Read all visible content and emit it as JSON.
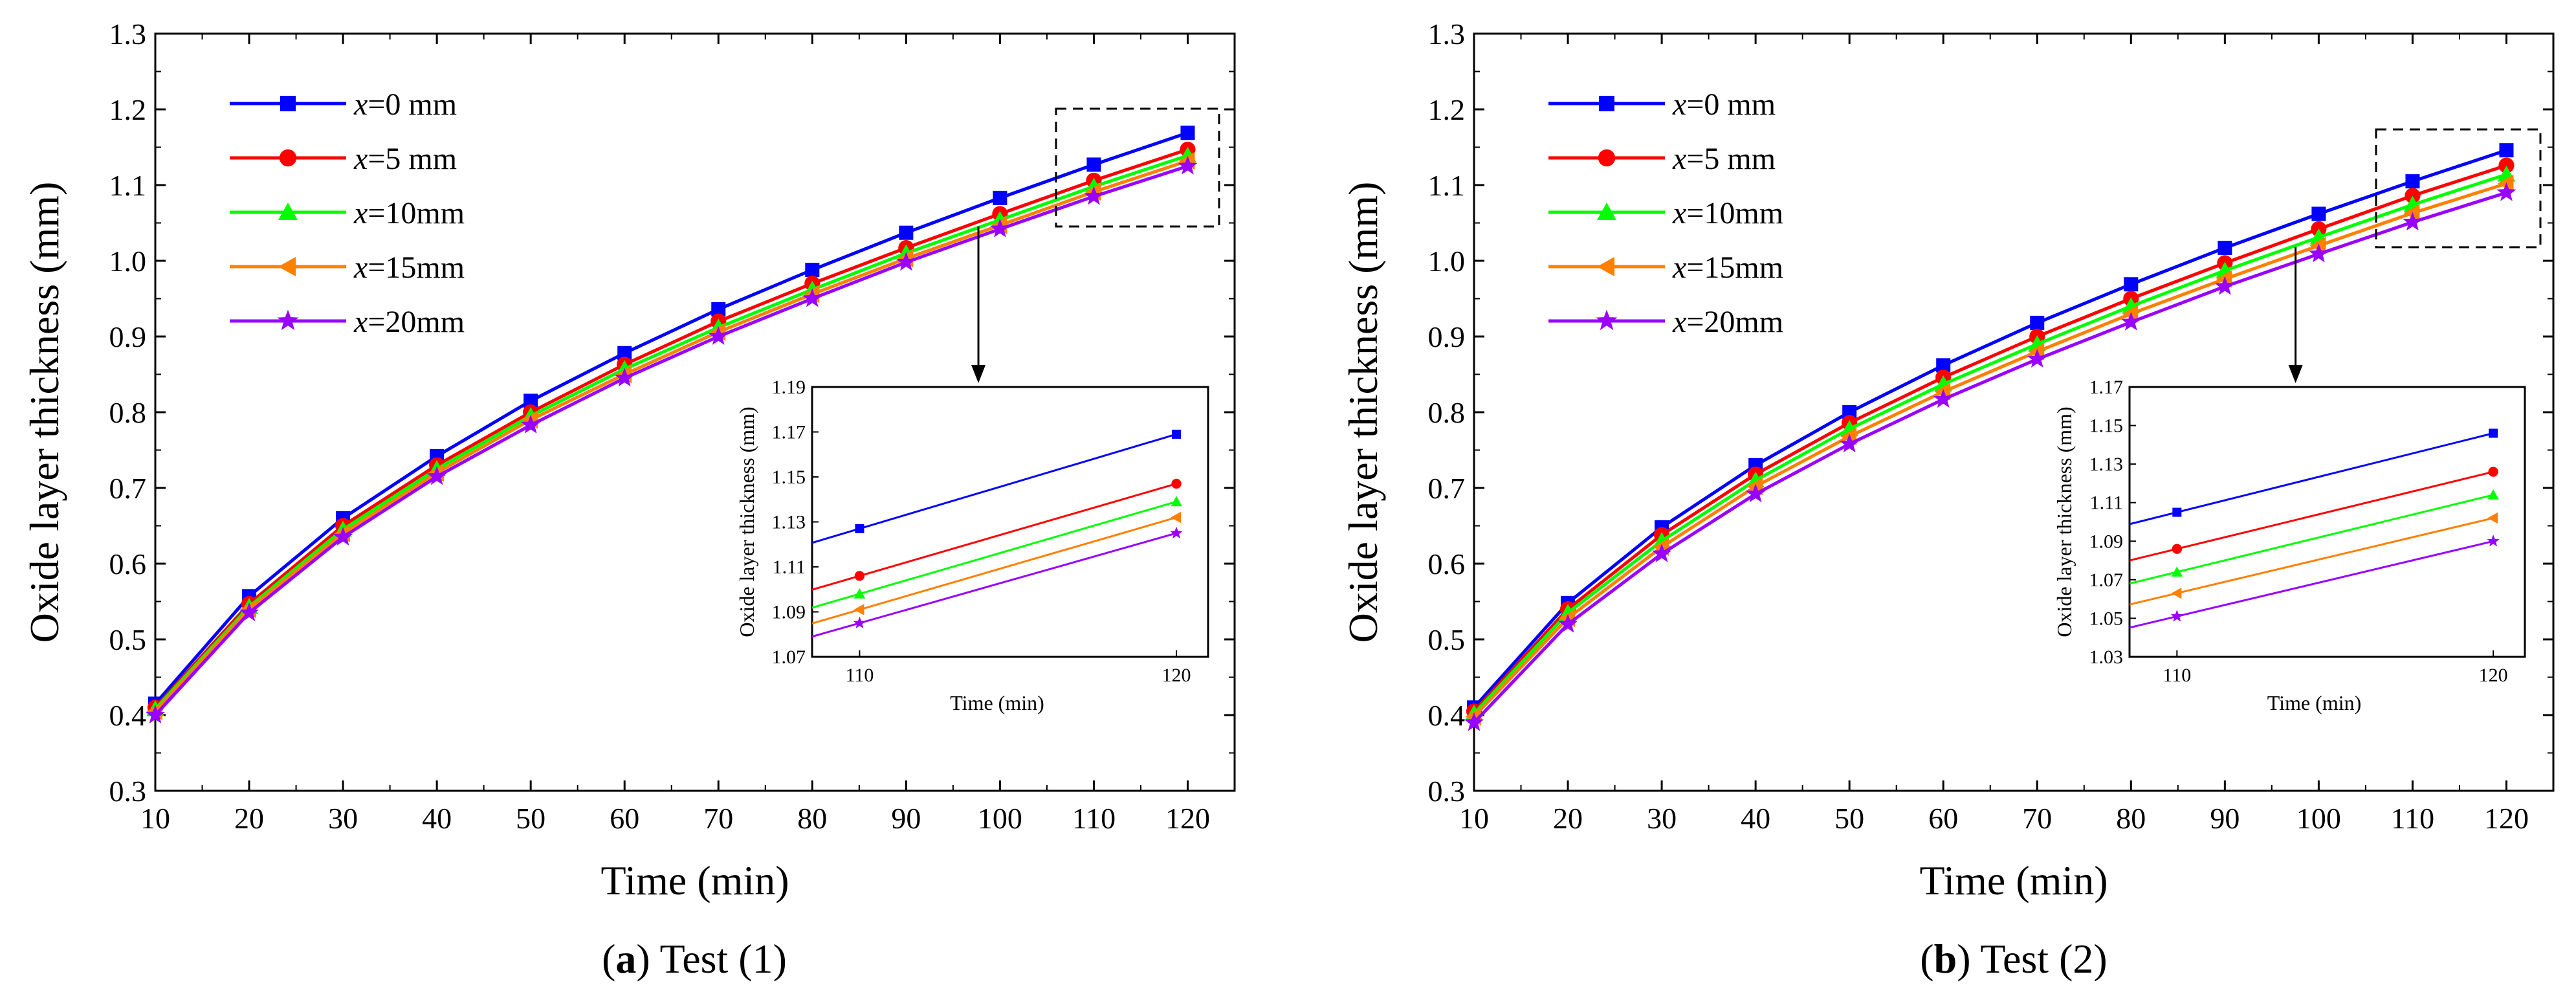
{
  "chart_data": [
    {
      "type": "line",
      "caption_letter": "a",
      "caption_text": ") Test (1)",
      "caption_open": "(",
      "xlabel": "Time (min)",
      "ylabel": "Oxide layer thickness (mm)",
      "xlim": [
        10,
        125
      ],
      "ylim": [
        0.3,
        1.3
      ],
      "xticks": [
        "10",
        "20",
        "30",
        "40",
        "50",
        "60",
        "70",
        "80",
        "90",
        "100",
        "110",
        "120"
      ],
      "yticks": [
        "0.3",
        "0.4",
        "0.5",
        "0.6",
        "0.7",
        "0.8",
        "0.9",
        "1.0",
        "1.1",
        "1.2",
        "1.3"
      ],
      "x": [
        10,
        20,
        30,
        40,
        50,
        60,
        70,
        80,
        90,
        100,
        110,
        120
      ],
      "series": [
        {
          "name_var": "x",
          "name_rest": "=0 mm",
          "color": "#0000ff",
          "marker": "square",
          "values": [
            0.415,
            0.557,
            0.66,
            0.742,
            0.815,
            0.878,
            0.936,
            0.988,
            1.037,
            1.083,
            1.127,
            1.169
          ]
        },
        {
          "name_var": "x",
          "name_rest": "=5 mm",
          "color": "#ff0000",
          "marker": "circle",
          "values": [
            0.41,
            0.547,
            0.65,
            0.73,
            0.8,
            0.863,
            0.92,
            0.97,
            1.017,
            1.062,
            1.106,
            1.147
          ]
        },
        {
          "name_var": "x",
          "name_rest": "=10mm",
          "color": "#00ff00",
          "marker": "triangle-up",
          "values": [
            0.408,
            0.543,
            0.645,
            0.725,
            0.795,
            0.857,
            0.912,
            0.962,
            1.01,
            1.054,
            1.098,
            1.139
          ]
        },
        {
          "name_var": "x",
          "name_rest": "=15mm",
          "color": "#ff8000",
          "marker": "triangle-left",
          "values": [
            0.405,
            0.54,
            0.64,
            0.72,
            0.79,
            0.85,
            0.906,
            0.956,
            1.003,
            1.047,
            1.091,
            1.132
          ]
        },
        {
          "name_var": "x",
          "name_rest": "=20mm",
          "color": "#9900ff",
          "marker": "star",
          "values": [
            0.4,
            0.535,
            0.635,
            0.715,
            0.783,
            0.845,
            0.9,
            0.95,
            0.998,
            1.042,
            1.085,
            1.125
          ]
        }
      ],
      "inset": {
        "xlabel": "Time (min)",
        "ylabel": "Oxide layer thickness (mm)",
        "xlim": [
          108.5,
          121
        ],
        "ylim": [
          1.07,
          1.19
        ],
        "xticks": [
          "110",
          "120"
        ],
        "yticks": [
          "1.07",
          "1.09",
          "1.11",
          "1.13",
          "1.15",
          "1.17",
          "1.19"
        ]
      }
    },
    {
      "type": "line",
      "caption_letter": "b",
      "caption_text": ") Test (2)",
      "caption_open": "(",
      "xlabel": "Time (min)",
      "ylabel": "Oxide layer thickness (mm)",
      "xlim": [
        10,
        125
      ],
      "ylim": [
        0.3,
        1.3
      ],
      "xticks": [
        "10",
        "20",
        "30",
        "40",
        "50",
        "60",
        "70",
        "80",
        "90",
        "100",
        "110",
        "120"
      ],
      "yticks": [
        "0.3",
        "0.4",
        "0.5",
        "0.6",
        "0.7",
        "0.8",
        "0.9",
        "1.0",
        "1.1",
        "1.2",
        "1.3"
      ],
      "x": [
        10,
        20,
        30,
        40,
        50,
        60,
        70,
        80,
        90,
        100,
        110,
        120
      ],
      "series": [
        {
          "name_var": "x",
          "name_rest": "=0 mm",
          "color": "#0000ff",
          "marker": "square",
          "values": [
            0.41,
            0.548,
            0.648,
            0.73,
            0.8,
            0.862,
            0.918,
            0.969,
            1.017,
            1.062,
            1.105,
            1.146
          ]
        },
        {
          "name_var": "x",
          "name_rest": "=5 mm",
          "color": "#ff0000",
          "marker": "circle",
          "values": [
            0.405,
            0.54,
            0.638,
            0.718,
            0.786,
            0.846,
            0.9,
            0.95,
            0.997,
            1.042,
            1.086,
            1.126
          ]
        },
        {
          "name_var": "x",
          "name_rest": "=10mm",
          "color": "#00ff00",
          "marker": "triangle-up",
          "values": [
            0.402,
            0.535,
            0.63,
            0.71,
            0.778,
            0.837,
            0.89,
            0.94,
            0.987,
            1.031,
            1.074,
            1.114
          ]
        },
        {
          "name_var": "x",
          "name_rest": "=15mm",
          "color": "#ff8000",
          "marker": "triangle-left",
          "values": [
            0.398,
            0.528,
            0.622,
            0.702,
            0.768,
            0.827,
            0.88,
            0.93,
            0.976,
            1.02,
            1.063,
            1.102
          ]
        },
        {
          "name_var": "x",
          "name_rest": "=20mm",
          "color": "#9900ff",
          "marker": "star",
          "values": [
            0.39,
            0.52,
            0.613,
            0.692,
            0.758,
            0.817,
            0.87,
            0.919,
            0.966,
            1.009,
            1.051,
            1.09
          ]
        }
      ],
      "inset": {
        "xlabel": "Time (min)",
        "ylabel": "Oxide layer thickness (mm)",
        "xlim": [
          108.5,
          121
        ],
        "ylim": [
          1.03,
          1.17
        ],
        "xticks": [
          "110",
          "120"
        ],
        "yticks": [
          "1.03",
          "1.05",
          "1.07",
          "1.09",
          "1.11",
          "1.13",
          "1.15",
          "1.17"
        ]
      }
    }
  ]
}
